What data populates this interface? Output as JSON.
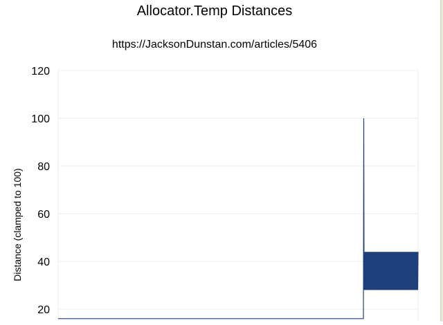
{
  "chart_data": {
    "type": "line",
    "title": "Allocator.Temp Distances",
    "subtitle": "https://JacksonDunstan.com/articles/5406",
    "xlabel": "",
    "ylabel": "Distance (clamped to 100)",
    "ylim": [
      15,
      120
    ],
    "yticks": [
      "20",
      "40",
      "60",
      "80",
      "100",
      "120"
    ],
    "grid": true,
    "legend": "none",
    "series_color": "#1f3f7a",
    "series": [
      {
        "segments": [
          {
            "from_sample": 0,
            "to_sample": 899,
            "value": 16
          },
          {
            "sample": 900,
            "value": 100
          },
          {
            "from_sample": 901,
            "to_sample": 1060,
            "alternating_values": [
              28,
              44
            ]
          }
        ]
      }
    ]
  }
}
